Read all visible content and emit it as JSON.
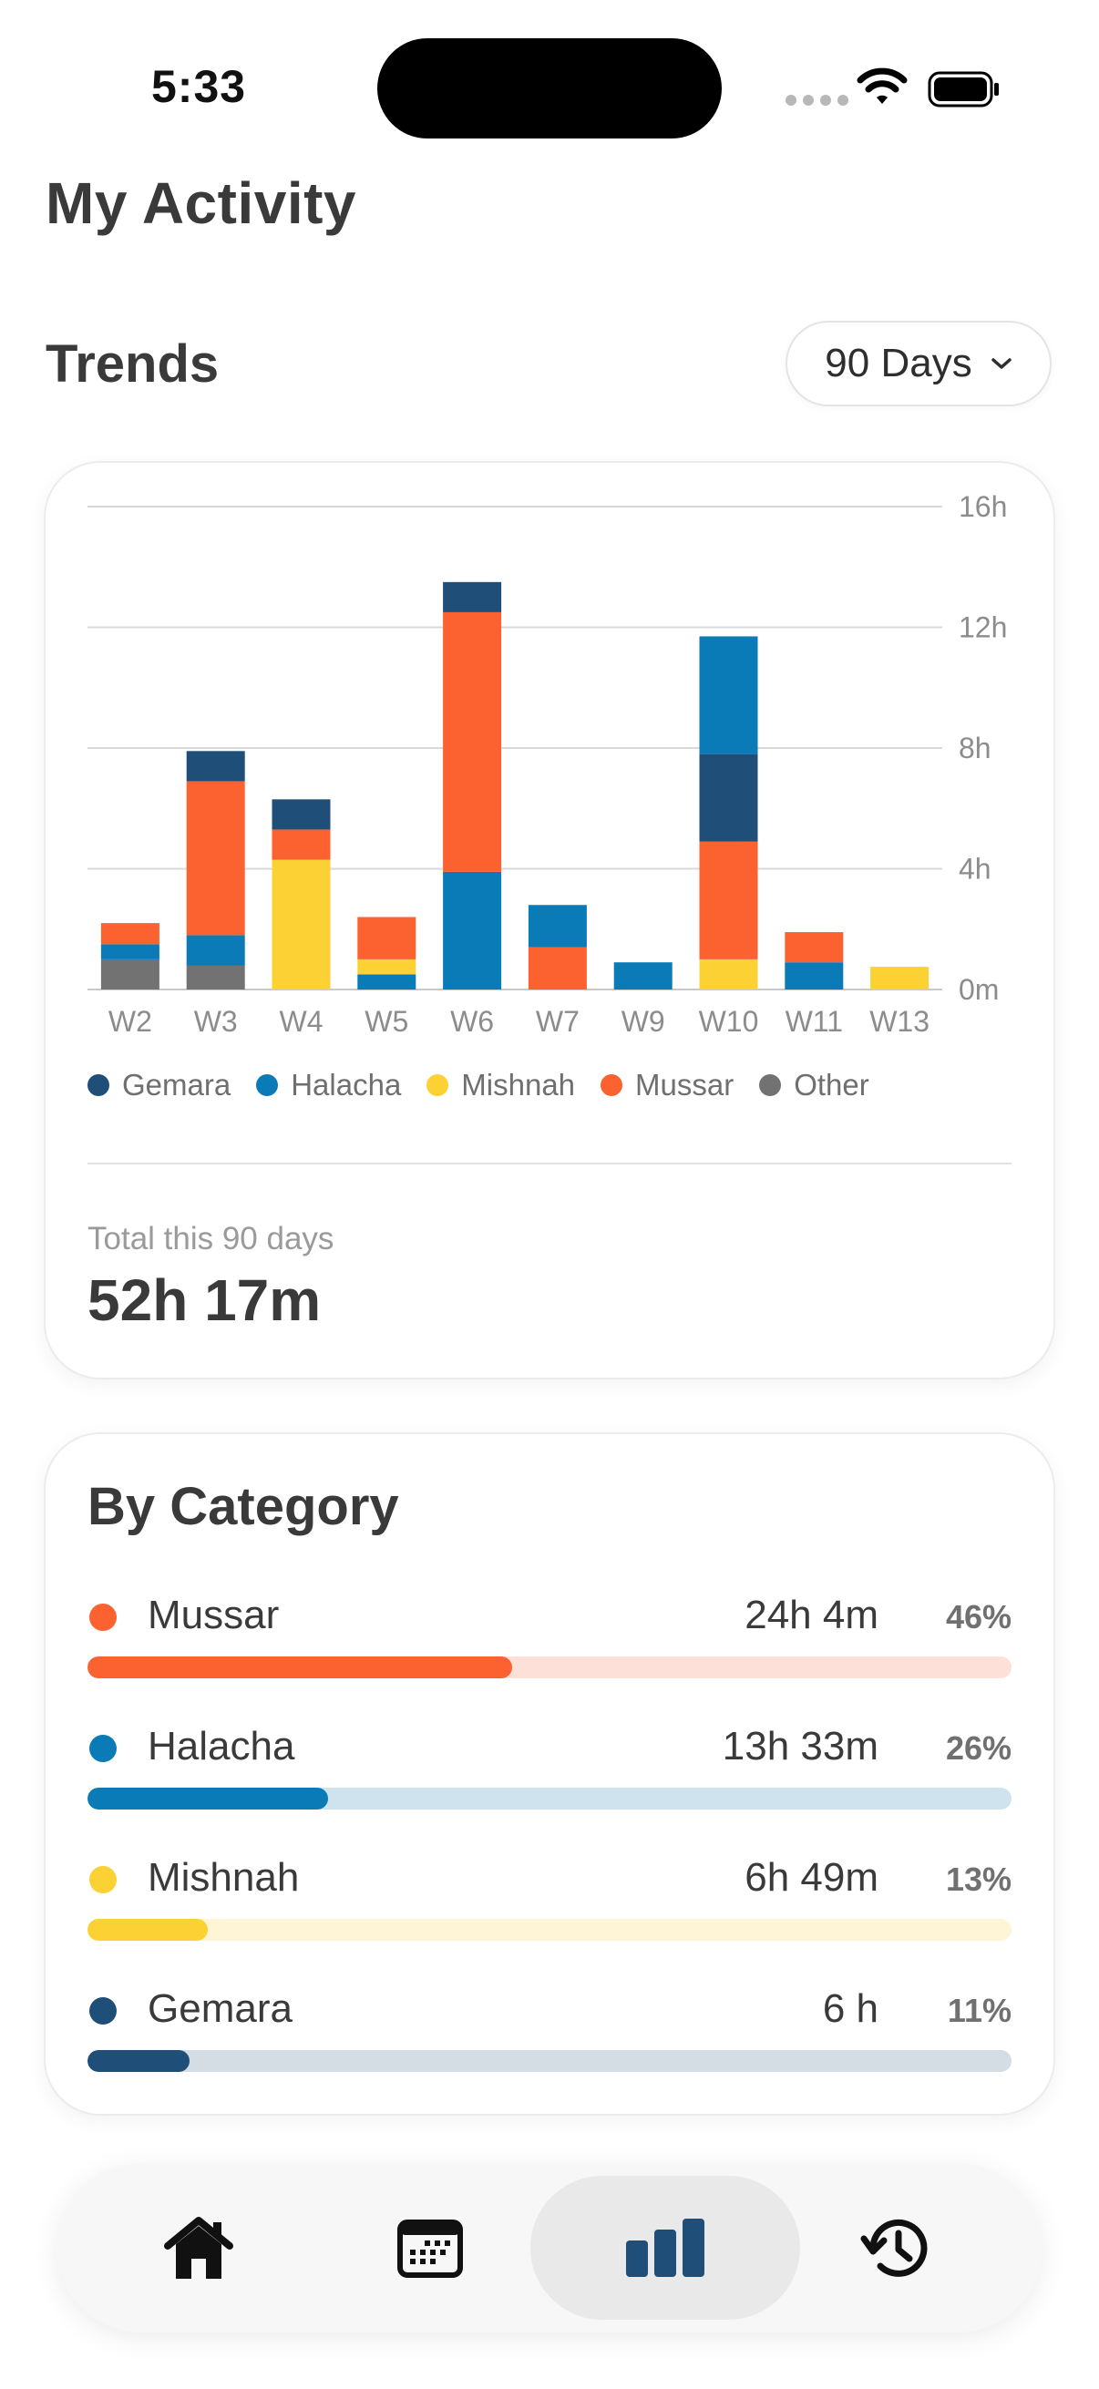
{
  "status_bar": {
    "time": "5:33"
  },
  "page_title": "My Activity",
  "trends": {
    "title": "Trends",
    "range_label": "90 Days",
    "total_label": "Total this 90 days",
    "total_value": "52h 17m"
  },
  "colors": {
    "Gemara": "#1f4e79",
    "Halacha": "#0a7bb7",
    "Mishnah": "#fcd133",
    "Mussar": "#fc6130",
    "Other": "#727272"
  },
  "chart_data": {
    "type": "bar",
    "stacked": true,
    "categories": [
      "W2",
      "W3",
      "W4",
      "W5",
      "W6",
      "W7",
      "W9",
      "W10",
      "W11",
      "W13"
    ],
    "ylim": [
      0,
      16
    ],
    "y_ticks": [
      "0m",
      "4h",
      "8h",
      "12h",
      "16h"
    ],
    "y_tick_values": [
      0,
      4,
      8,
      12,
      16
    ],
    "y_unit": "hours",
    "grid": true,
    "legend_position": "bottom",
    "series": [
      {
        "name": "Other",
        "values": [
          1.0,
          0.8,
          0,
          0,
          0,
          0,
          0,
          0,
          0,
          0
        ]
      },
      {
        "name": "Halacha",
        "values": [
          0.5,
          1.0,
          0,
          0.5,
          3.9,
          0,
          0.9,
          0,
          0.9,
          0
        ]
      },
      {
        "name": "Mishnah",
        "values": [
          0,
          0,
          4.3,
          0.5,
          0,
          0,
          0,
          1.0,
          0,
          0.75
        ]
      },
      {
        "name": "Mussar",
        "values": [
          0.7,
          5.1,
          1.0,
          1.4,
          8.6,
          1.4,
          0,
          3.9,
          1.0,
          0
        ]
      },
      {
        "name": "Gemara",
        "values": [
          0,
          1.0,
          1.0,
          0,
          1.0,
          0,
          0,
          2.9,
          0,
          0
        ]
      },
      {
        "name": "Halacha",
        "values": [
          0,
          0,
          0,
          0,
          0,
          1.4,
          0,
          3.9,
          0,
          0
        ]
      }
    ],
    "legend": [
      "Gemara",
      "Halacha",
      "Mishnah",
      "Mussar",
      "Other"
    ]
  },
  "by_category": {
    "title": "By Category",
    "items": [
      {
        "name": "Mussar",
        "time": "24h 4m",
        "percent": "46%",
        "fraction": 0.46,
        "color": "#fc6130",
        "track": "#fde1d8"
      },
      {
        "name": "Halacha",
        "time": "13h 33m",
        "percent": "26%",
        "fraction": 0.26,
        "color": "#0a7bb7",
        "track": "#cfe3ef"
      },
      {
        "name": "Mishnah",
        "time": "6h 49m",
        "percent": "13%",
        "fraction": 0.13,
        "color": "#fcd133",
        "track": "#fdf5d6"
      },
      {
        "name": "Gemara",
        "time": "6 h",
        "percent": "11%",
        "fraction": 0.11,
        "color": "#1f4e79",
        "track": "#d5dde4"
      }
    ]
  },
  "nav": {
    "items": [
      {
        "icon": "home-icon",
        "active": false
      },
      {
        "icon": "calendar-icon",
        "active": false
      },
      {
        "icon": "bar-chart-icon",
        "active": true
      },
      {
        "icon": "history-icon",
        "active": false
      }
    ]
  }
}
